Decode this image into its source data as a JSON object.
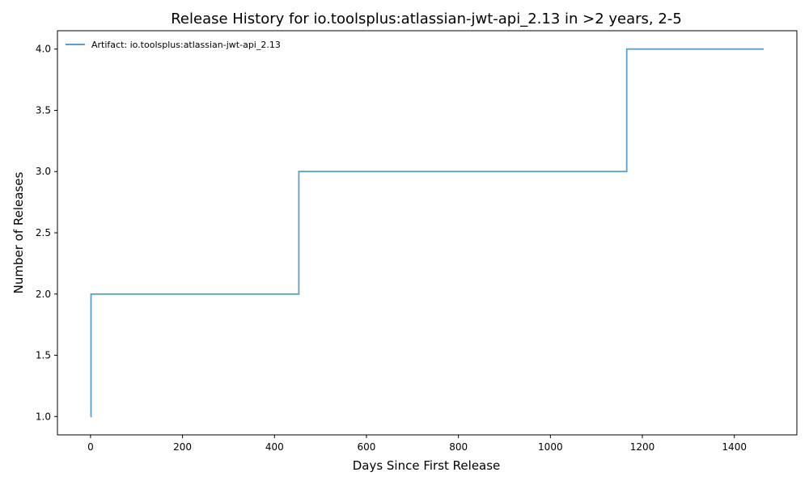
{
  "chart_data": {
    "type": "line",
    "title": "Release History for io.toolsplus:atlassian-jwt-api_2.13 in >2 years, 2-5",
    "xlabel": "Days Since First Release",
    "ylabel": "Number of Releases",
    "xlim": [
      -72,
      1536
    ],
    "ylim": [
      0.85,
      4.15
    ],
    "xticks": [
      0,
      200,
      400,
      600,
      800,
      1000,
      1200,
      1400
    ],
    "xtick_labels": [
      "0",
      "200",
      "400",
      "600",
      "800",
      "1000",
      "1200",
      "1400"
    ],
    "yticks": [
      1.0,
      1.5,
      2.0,
      2.5,
      3.0,
      3.5,
      4.0
    ],
    "ytick_labels": [
      "1.0",
      "1.5",
      "2.0",
      "2.5",
      "3.0",
      "3.5",
      "4.0"
    ],
    "grid": false,
    "legend_position": "top-left",
    "step": "post",
    "series": [
      {
        "name": "Artifact: io.toolsplus:atlassian-jwt-api_2.13",
        "color": "#5b9ec9",
        "x": [
          0,
          1,
          453,
          1166,
          1464
        ],
        "y": [
          1,
          2,
          3,
          4,
          4
        ]
      }
    ]
  }
}
